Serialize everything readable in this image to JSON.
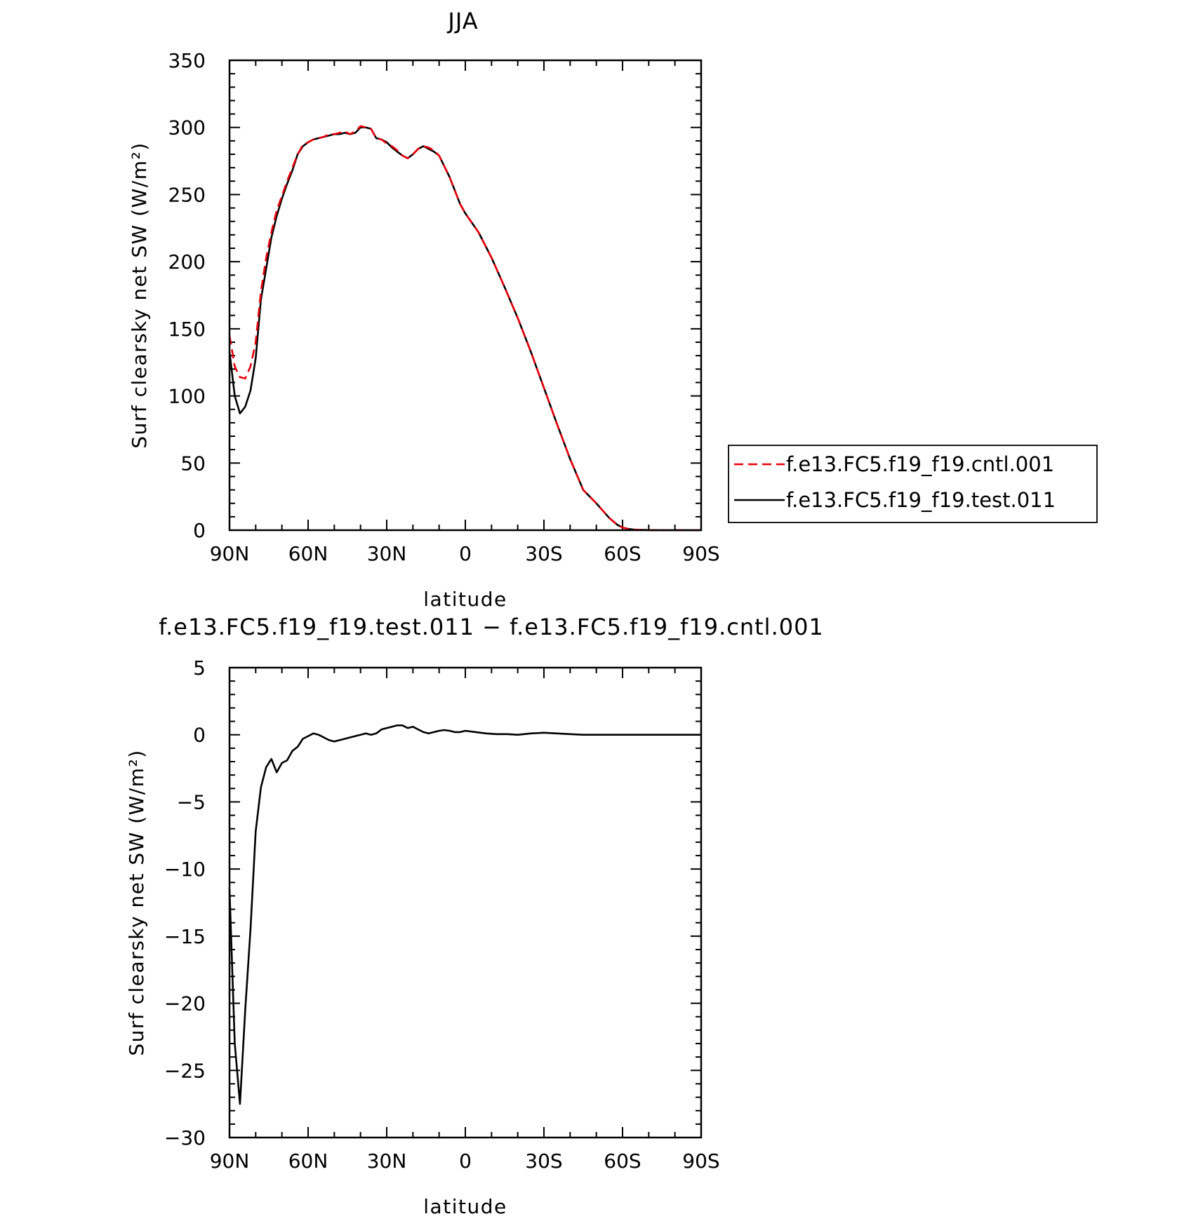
{
  "chart_data": [
    {
      "type": "line",
      "title": "JJA",
      "xlabel": "latitude",
      "ylabel": "Surf clearsky net SW (W/m²)",
      "xlim": [
        90,
        -90
      ],
      "ylim": [
        0,
        350
      ],
      "xticks": [
        90,
        60,
        30,
        0,
        -30,
        -60,
        -90
      ],
      "xtick_labels": [
        "90N",
        "60N",
        "30N",
        "0",
        "30S",
        "60S",
        "90S"
      ],
      "yticks": [
        0,
        50,
        100,
        150,
        200,
        250,
        300,
        350
      ],
      "ytick_labels": [
        "0",
        "50",
        "100",
        "150",
        "200",
        "250",
        "300",
        "350"
      ],
      "legend": {
        "position": "right",
        "entries": [
          "f.e13.FC5.f19_f19.cntl.001",
          "f.e13.FC5.f19_f19.test.011"
        ]
      },
      "series": [
        {
          "name": "f.e13.FC5.f19_f19.cntl.001",
          "color": "#e8000b",
          "dash": "dashed",
          "x": [
            90,
            88,
            86,
            84,
            82,
            80,
            78,
            76,
            74,
            72,
            70,
            68,
            66,
            64,
            62,
            60,
            58,
            56,
            54,
            52,
            50,
            48,
            46,
            44,
            42,
            40,
            38,
            36,
            34,
            32,
            30,
            28,
            26,
            24,
            22,
            20,
            18,
            16,
            14,
            12,
            10,
            8,
            6,
            4,
            2,
            0,
            -5,
            -10,
            -15,
            -20,
            -25,
            -30,
            -35,
            -40,
            -45,
            -50,
            -55,
            -58,
            -60,
            -62,
            -64,
            -66,
            -68,
            -70,
            -72,
            -75,
            -80,
            -85,
            -90
          ],
          "y": [
            145,
            122,
            114,
            113,
            122,
            140,
            178,
            203,
            222,
            238,
            249,
            260,
            270,
            280,
            287,
            289,
            291,
            292,
            293,
            295,
            295,
            296,
            297,
            295,
            297,
            301,
            300,
            299,
            292,
            291,
            288,
            286,
            283,
            279,
            277,
            280,
            284,
            286,
            285,
            283,
            279,
            271,
            263,
            253,
            243,
            236,
            222,
            203,
            181,
            158,
            133,
            106,
            79,
            53,
            30,
            20,
            9,
            4,
            2,
            1,
            0.5,
            0.3,
            0.2,
            0.1,
            0.05,
            0,
            0,
            0,
            0
          ]
        },
        {
          "name": "f.e13.FC5.f19_f19.test.011",
          "color": "#000000",
          "dash": "solid",
          "x": [
            90,
            88,
            86,
            84,
            82,
            80,
            78,
            76,
            74,
            72,
            70,
            68,
            66,
            64,
            62,
            60,
            58,
            56,
            54,
            52,
            50,
            48,
            46,
            44,
            42,
            40,
            38,
            36,
            34,
            32,
            30,
            28,
            26,
            24,
            22,
            20,
            18,
            16,
            14,
            12,
            10,
            8,
            6,
            4,
            2,
            0,
            -5,
            -10,
            -15,
            -20,
            -25,
            -30,
            -35,
            -40,
            -45,
            -50,
            -55,
            -58,
            -60,
            -62,
            -64,
            -66,
            -68,
            -70,
            -72,
            -75,
            -80,
            -85,
            -90
          ],
          "y": [
            133,
            100,
            87,
            92,
            104,
            128,
            172,
            195,
            218,
            234,
            247,
            258,
            268,
            280,
            286,
            289,
            291,
            292,
            293,
            294,
            295,
            295,
            296,
            295,
            296,
            300,
            300,
            299,
            292,
            291,
            289,
            285,
            282,
            279,
            277,
            280,
            284,
            286,
            284,
            282,
            279,
            271,
            263,
            253,
            243,
            236,
            222,
            203,
            181,
            158,
            133,
            106,
            79,
            53,
            30,
            20,
            9,
            4,
            2,
            1,
            0.5,
            0.3,
            0.2,
            0.1,
            0.05,
            0,
            0,
            0,
            0
          ]
        }
      ]
    },
    {
      "type": "line",
      "title": "f.e13.FC5.f19_f19.test.011 − f.e13.FC5.f19_f19.cntl.001",
      "xlabel": "latitude",
      "ylabel": "Surf clearsky net SW (W/m²)",
      "xlim": [
        90,
        -90
      ],
      "ylim": [
        -30,
        5
      ],
      "xticks": [
        90,
        60,
        30,
        0,
        -30,
        -60,
        -90
      ],
      "xtick_labels": [
        "90N",
        "60N",
        "30N",
        "0",
        "30S",
        "60S",
        "90S"
      ],
      "yticks": [
        5,
        0,
        -5,
        -10,
        -15,
        -20,
        -25,
        -30
      ],
      "ytick_labels": [
        "5",
        "0",
        "−5",
        "−10",
        "−15",
        "−20",
        "−25",
        "−30"
      ],
      "series": [
        {
          "color": "#000000",
          "dash": "solid",
          "x": [
            90,
            88,
            86,
            84,
            82,
            80,
            78,
            76,
            74,
            72,
            70,
            68,
            66,
            64,
            62,
            60,
            58,
            56,
            54,
            52,
            50,
            48,
            46,
            44,
            42,
            40,
            38,
            36,
            34,
            32,
            30,
            28,
            26,
            24,
            22,
            20,
            18,
            16,
            14,
            12,
            10,
            8,
            6,
            4,
            2,
            0,
            -4,
            -8,
            -12,
            -16,
            -20,
            -25,
            -30,
            -35,
            -40,
            -45,
            -50,
            -55,
            -60,
            -65,
            -70,
            -75,
            -80,
            -85,
            -90
          ],
          "y": [
            -11.5,
            -23,
            -27.5,
            -20.5,
            -14.5,
            -7.2,
            -3.9,
            -2.4,
            -1.8,
            -2.8,
            -2.1,
            -1.9,
            -1.2,
            -0.9,
            -0.3,
            -0.1,
            0.1,
            0,
            -0.2,
            -0.4,
            -0.5,
            -0.4,
            -0.3,
            -0.2,
            -0.1,
            0,
            0.1,
            0,
            0.1,
            0.4,
            0.5,
            0.6,
            0.7,
            0.7,
            0.5,
            0.6,
            0.4,
            0.2,
            0.1,
            0.2,
            0.3,
            0.35,
            0.3,
            0.2,
            0.2,
            0.3,
            0.2,
            0.1,
            0.05,
            0.05,
            0,
            0.1,
            0.15,
            0.1,
            0.05,
            0,
            0,
            0,
            0,
            0,
            0,
            0,
            0,
            0,
            0
          ]
        }
      ]
    }
  ]
}
